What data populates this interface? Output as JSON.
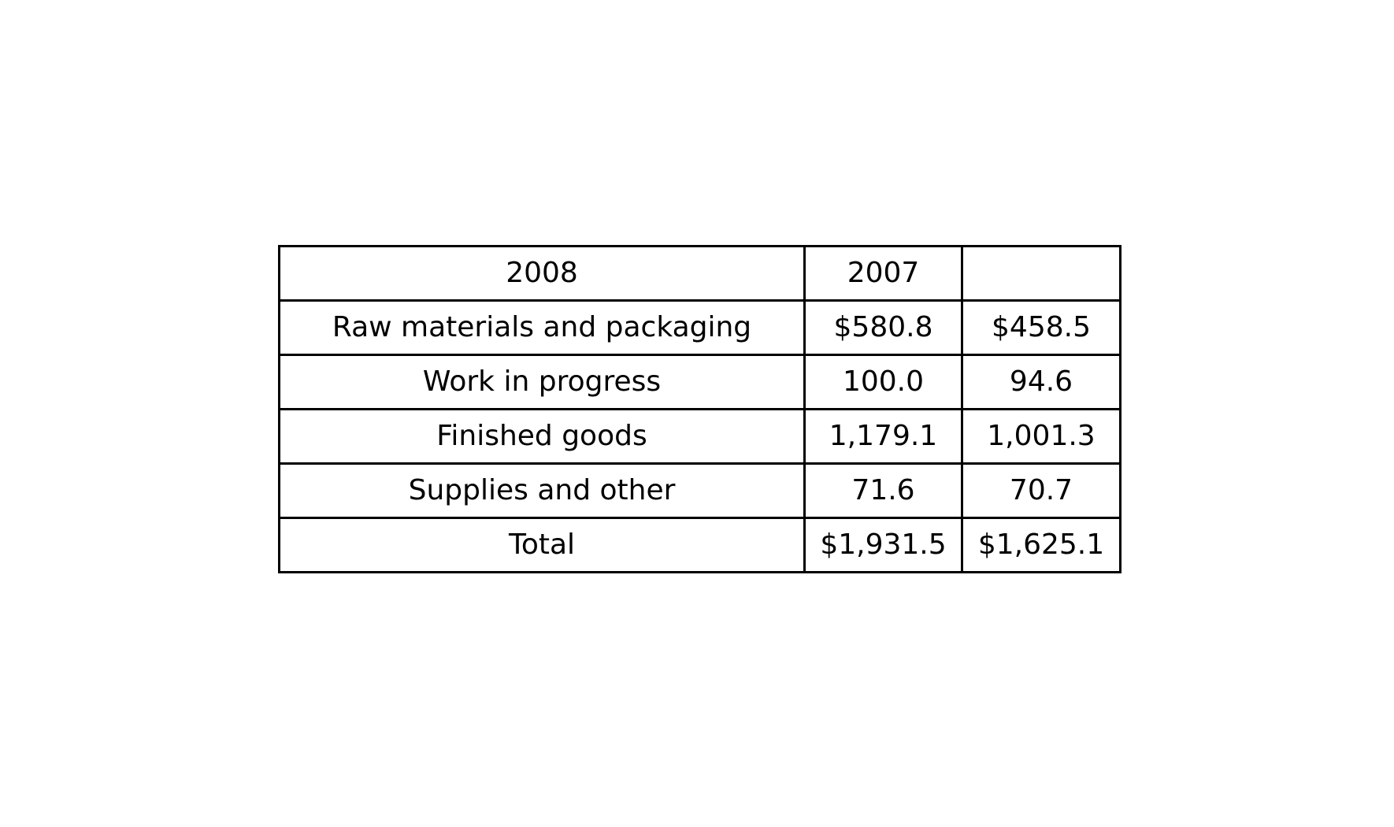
{
  "chart_data": {
    "type": "table",
    "header": [
      "2008",
      "2007",
      ""
    ],
    "rows": [
      [
        "Raw materials and packaging",
        "$580.8",
        "$458.5"
      ],
      [
        "Work in progress",
        "100.0",
        "94.6"
      ],
      [
        "Finished goods",
        "1,179.1",
        "1,001.3"
      ],
      [
        "Supplies and other",
        "71.6",
        "70.7"
      ],
      [
        "Total",
        "$1,931.5",
        "$1,625.1"
      ]
    ]
  }
}
